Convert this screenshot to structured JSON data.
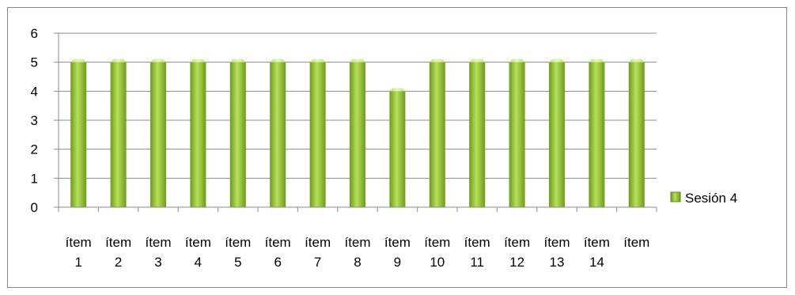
{
  "chart_data": {
    "type": "bar",
    "categories": [
      "ítem 1",
      "ítem 2",
      "ítem 3",
      "ítem 4",
      "ítem 5",
      "ítem 6",
      "ítem 7",
      "ítem 8",
      "ítem 9",
      "ítem 10",
      "ítem 11",
      "ítem 12",
      "ítem 13",
      "ítem 14",
      "ítem"
    ],
    "series": [
      {
        "name": "Sesión 4",
        "values": [
          5,
          5,
          5,
          5,
          5,
          5,
          5,
          5,
          4,
          5,
          5,
          5,
          5,
          5,
          5
        ],
        "color": "#9acd32"
      }
    ],
    "title": "",
    "xlabel": "",
    "ylabel": "",
    "ylim": [
      0,
      6
    ],
    "yticks": [
      "0",
      "1",
      "2",
      "3",
      "4",
      "5",
      "6"
    ],
    "grid": true,
    "legend_position": "right"
  }
}
